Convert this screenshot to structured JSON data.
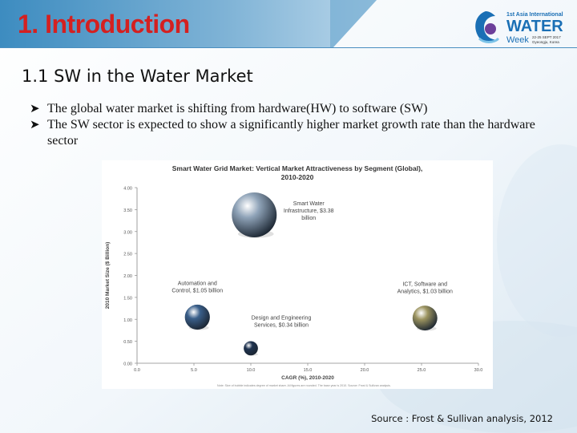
{
  "slide": {
    "title": "1. Introduction",
    "subtitle": "1.1 SW in the Water Market",
    "bullets": [
      "The global water market is shifting from hardware(HW) to software (SW)",
      "The SW sector is expected to show a significantly higher market growth rate than the hardware sector"
    ],
    "source": "Source : Frost & Sullivan analysis, 2012",
    "logo": {
      "line1": "1st Asia International",
      "line2": "WATER",
      "line3": "Week",
      "dates": "22-25 SEPT 2017",
      "city": "Gyeongju, Korea"
    },
    "colors": {
      "title": "#d42020",
      "banner_top": "#2f7fb0",
      "logo_blue": "#1a6fb5"
    }
  },
  "chart_data": {
    "type": "scatter",
    "title": "Smart Water Grid Market: Vertical Market Attractiveness by Segment (Global), 2010-2020",
    "xlabel": "CAGR (%), 2010-2020",
    "ylabel": "2010 Market Size ($ Billion)",
    "xlim": [
      0,
      30
    ],
    "ylim": [
      0,
      4
    ],
    "xticks": [
      "0.0",
      "5.0",
      "10.0",
      "15.0",
      "20.0",
      "25.0",
      "30.0"
    ],
    "yticks": [
      "0.00",
      "0.50",
      "1.00",
      "1.50",
      "2.00",
      "2.50",
      "3.00",
      "3.50",
      "4.00"
    ],
    "note": "Note: Size of bubble indicates degree of market share. All figures are rounded. The base year is 2010. Source: Frost & Sullivan analysis.",
    "series": [
      {
        "name": "Smart Water Infrastructure, $3.38 billion",
        "label_lines": [
          "Smart Water",
          "Infrastructure, $3.38",
          "billion"
        ],
        "x": 10.3,
        "y": 3.38,
        "color": "#8fa3b8"
      },
      {
        "name": "Automation and Control, $1.05 billion",
        "label_lines": [
          "Automation and",
          "Control, $1.05 billion"
        ],
        "x": 5.3,
        "y": 1.05,
        "color": "#3a5f8a"
      },
      {
        "name": "ICT, Software and Analytics, $1.03 billion",
        "label_lines": [
          "ICT, Software and",
          "Analytics, $1.03 billion"
        ],
        "x": 25.3,
        "y": 1.03,
        "color": "#9c9460"
      },
      {
        "name": "Design and Engineering Services, $0.34 billion",
        "label_lines": [
          "Design and Engineering",
          "Services, $0.34 billion"
        ],
        "x": 10.0,
        "y": 0.34,
        "color": "#1f3350"
      }
    ]
  }
}
